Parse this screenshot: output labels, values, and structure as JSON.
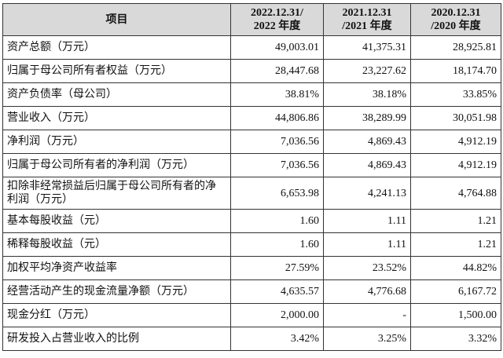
{
  "table": {
    "headers": [
      {
        "line1": "项目",
        "line2": ""
      },
      {
        "line1": "2022.12.31/",
        "line2": "2022 年度"
      },
      {
        "line1": "2021.12.31",
        "line2": "/2021 年度"
      },
      {
        "line1": "2020.12.31",
        "line2": "/2020 年度"
      }
    ],
    "rows": [
      {
        "label": "资产总额（万元）",
        "v2022": "49,003.01",
        "v2021": "41,375.31",
        "v2020": "28,925.81"
      },
      {
        "label": "归属于母公司所有者权益（万元）",
        "v2022": "28,447.68",
        "v2021": "23,227.62",
        "v2020": "18,174.70"
      },
      {
        "label": "资产负债率（母公司）",
        "v2022": "38.81%",
        "v2021": "38.18%",
        "v2020": "33.85%"
      },
      {
        "label": "营业收入（万元）",
        "v2022": "44,806.86",
        "v2021": "38,289.99",
        "v2020": "30,051.98"
      },
      {
        "label": "净利润（万元）",
        "v2022": "7,036.56",
        "v2021": "4,869.43",
        "v2020": "4,912.19"
      },
      {
        "label": "归属于母公司所有者的净利润（万元）",
        "v2022": "7,036.56",
        "v2021": "4,869.43",
        "v2020": "4,912.19"
      },
      {
        "label": "扣除非经常损益后归属于母公司所有者的净利润（万元）",
        "v2022": "6,653.98",
        "v2021": "4,241.13",
        "v2020": "4,764.88"
      },
      {
        "label": "基本每股收益（元）",
        "v2022": "1.60",
        "v2021": "1.11",
        "v2020": "1.21"
      },
      {
        "label": "稀释每股收益（元）",
        "v2022": "1.60",
        "v2021": "1.11",
        "v2020": "1.21"
      },
      {
        "label": "加权平均净资产收益率",
        "v2022": "27.59%",
        "v2021": "23.52%",
        "v2020": "44.82%"
      },
      {
        "label": "经营活动产生的现金流量净额（万元）",
        "v2022": "4,635.57",
        "v2021": "4,776.68",
        "v2020": "6,167.72"
      },
      {
        "label": "现金分红（万元）",
        "v2022": "2,000.00",
        "v2021": "-",
        "v2020": "1,500.00"
      },
      {
        "label": "研发投入占营业收入的比例",
        "v2022": "3.42%",
        "v2021": "3.25%",
        "v2020": "3.32%"
      }
    ]
  }
}
